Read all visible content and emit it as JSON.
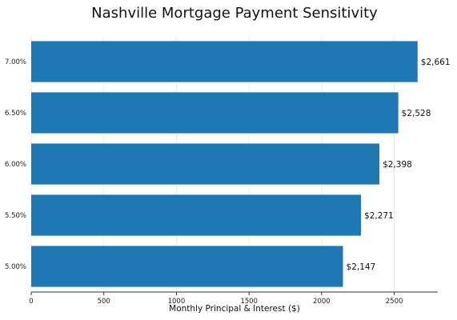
{
  "chart_data": {
    "type": "bar",
    "orientation": "horizontal",
    "title": "Nashville Mortgage Payment Sensitivity",
    "xlabel": "Monthly Principal & Interest ($)",
    "ylabel": "",
    "categories": [
      "5.00%",
      "5.50%",
      "6.00%",
      "6.50%",
      "7.00%"
    ],
    "values": [
      2147,
      2271,
      2398,
      2528,
      2661
    ],
    "data_labels": [
      "$2,147",
      "$2,271",
      "$2,398",
      "$2,528",
      "$2,661"
    ],
    "xlim": [
      0,
      2800
    ],
    "xticks": [
      0,
      500,
      1000,
      1500,
      2000,
      2500
    ],
    "bar_color": "#1f77b4",
    "grid": "x",
    "legend": "none"
  }
}
